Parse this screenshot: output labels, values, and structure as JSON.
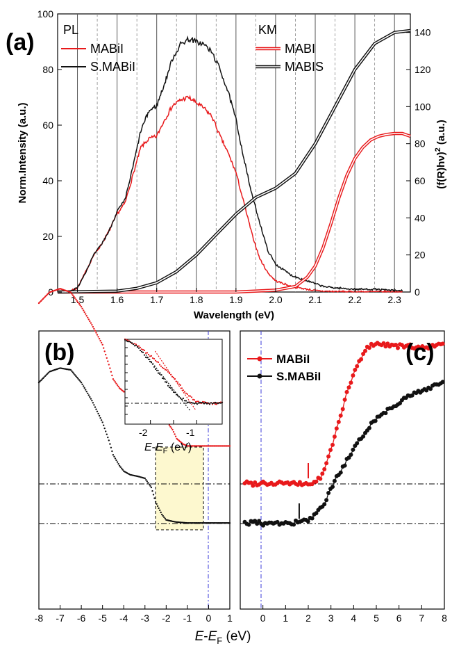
{
  "chart_data": [
    {
      "panel": "(a)",
      "type": "line",
      "xlabel": "Wavelength (eV)",
      "ylabel_left": "Norm.Intensity (a.u.)",
      "ylabel_right": "(f(R)hν)² (a.u.)",
      "xlim": [
        1.45,
        2.34
      ],
      "ylim_left": [
        0,
        100
      ],
      "ylim_right": [
        0,
        150
      ],
      "x_ticks": [
        "1.5",
        "1.6",
        "1.7",
        "1.8",
        "1.9",
        "2.0",
        "2.1",
        "2.2",
        "2.3"
      ],
      "y_ticks_left": [
        "0",
        "20",
        "40",
        "60",
        "80",
        "100"
      ],
      "y_ticks_right": [
        "0",
        "20",
        "40",
        "60",
        "80",
        "100",
        "120",
        "140"
      ],
      "legend_left_title": "PL",
      "legend_right_title": "KM",
      "series": [
        {
          "name": "MABiI",
          "axis": "left",
          "color": "#e8191b",
          "x": [
            1.45,
            1.48,
            1.5,
            1.52,
            1.54,
            1.56,
            1.58,
            1.6,
            1.62,
            1.64,
            1.66,
            1.68,
            1.7,
            1.72,
            1.74,
            1.76,
            1.78,
            1.8,
            1.82,
            1.84,
            1.86,
            1.88,
            1.9,
            1.92,
            1.94,
            1.96,
            1.98,
            2.0,
            2.02,
            2.04,
            2.06,
            2.08,
            2.1,
            2.12,
            2.15,
            2.2,
            2.25,
            2.3,
            2.32
          ],
          "y": [
            0,
            0.2,
            1.5,
            7,
            13,
            17,
            22,
            28,
            32,
            42,
            52,
            55,
            56,
            62,
            67,
            69,
            70,
            68,
            66,
            63,
            56,
            50,
            43,
            32,
            21,
            12,
            7,
            4,
            3,
            2,
            1.5,
            1,
            0.5,
            0.3,
            0.2,
            0.1,
            0.1,
            0.1,
            0
          ]
        },
        {
          "name": "S.MABiI",
          "axis": "left",
          "color": "#111111",
          "x": [
            1.45,
            1.48,
            1.5,
            1.52,
            1.54,
            1.56,
            1.58,
            1.6,
            1.62,
            1.64,
            1.66,
            1.68,
            1.7,
            1.72,
            1.74,
            1.76,
            1.78,
            1.8,
            1.82,
            1.84,
            1.86,
            1.88,
            1.9,
            1.92,
            1.94,
            1.96,
            1.98,
            2.0,
            2.02,
            2.04,
            2.06,
            2.08,
            2.1,
            2.12,
            2.15,
            2.2,
            2.25,
            2.3,
            2.32
          ],
          "y": [
            0,
            0.2,
            1.5,
            7,
            13,
            17,
            22,
            29,
            33,
            45,
            58,
            65,
            67,
            75,
            84,
            89,
            91,
            90,
            89,
            86,
            80,
            72,
            62,
            48,
            35,
            25,
            15,
            10,
            8,
            6,
            5,
            4,
            3,
            2,
            1.5,
            1,
            1,
            0.5,
            0.5
          ]
        },
        {
          "name": "MABI",
          "axis": "right",
          "color": "#e8191b",
          "style": "double",
          "x": [
            1.45,
            1.9,
            2.0,
            2.05,
            2.08,
            2.1,
            2.12,
            2.14,
            2.16,
            2.18,
            2.2,
            2.22,
            2.24,
            2.26,
            2.28,
            2.3,
            2.32,
            2.34
          ],
          "y": [
            0,
            0,
            1,
            3,
            8,
            14,
            24,
            37,
            51,
            63,
            72,
            78,
            82,
            84,
            85,
            85.5,
            85.5,
            84
          ]
        },
        {
          "name": "MABIS",
          "axis": "right",
          "color": "#111111",
          "style": "double",
          "x": [
            1.45,
            1.6,
            1.65,
            1.7,
            1.75,
            1.8,
            1.85,
            1.9,
            1.95,
            2.0,
            2.05,
            2.1,
            2.15,
            2.2,
            2.25,
            2.3,
            2.34
          ],
          "y": [
            0,
            0.5,
            2,
            5,
            11,
            20,
            31,
            42,
            51,
            56,
            64,
            80,
            100,
            120,
            134,
            140,
            141
          ]
        }
      ]
    },
    {
      "panel": "(b)",
      "type": "line",
      "xlabel": "E-E_F (eV)",
      "xlim": [
        -8,
        1
      ],
      "x_ticks": [
        "-8",
        "-7",
        "-6",
        "-5",
        "-4",
        "-3",
        "-2",
        "-1",
        "0",
        "1"
      ],
      "series": [
        {
          "name": "MABiI",
          "color": "#e8191b",
          "x": [
            -8,
            -7.5,
            -7,
            -6.5,
            -6,
            -5.5,
            -5,
            -4.7,
            -4.5,
            -4.2,
            -4,
            -3.7,
            -3.3,
            -3,
            -2.7,
            -2.5,
            -2.2,
            -2,
            -1.7,
            -1.5,
            -1.2,
            -1,
            -0.5,
            0,
            0.5,
            1
          ],
          "y": [
            100,
            106,
            108,
            106,
            98,
            88,
            77,
            66,
            58,
            53,
            51,
            51,
            52,
            51,
            46,
            42,
            38,
            35,
            30,
            25,
            22,
            21,
            21,
            21,
            21,
            21
          ]
        },
        {
          "name": "S.MABiI",
          "color": "#111111",
          "x": [
            -8,
            -7.5,
            -7,
            -6.5,
            -6,
            -5.5,
            -5,
            -4.7,
            -4.5,
            -4.2,
            -4,
            -3.7,
            -3.3,
            -3,
            -2.7,
            -2.5,
            -2.2,
            -2,
            -1.7,
            -1.5,
            -1.2,
            -1,
            0,
            1
          ],
          "y": [
            78,
            84,
            86,
            85,
            78,
            68,
            56,
            46,
            38,
            32,
            29,
            27,
            26,
            25,
            20,
            12,
            5,
            2,
            1.2,
            0.8,
            0.5,
            0.3,
            0.3,
            0.3
          ]
        }
      ],
      "inset": {
        "xlabel": "E-E_F (eV)",
        "x_ticks": [
          "-2",
          "-1"
        ],
        "xlim": [
          -2.55,
          -0.45
        ]
      }
    },
    {
      "panel": "(c)",
      "type": "line",
      "xlim": [
        -1,
        8
      ],
      "x_ticks": [
        "0",
        "1",
        "2",
        "3",
        "4",
        "5",
        "6",
        "7",
        "8"
      ],
      "series": [
        {
          "name": "MABiI",
          "color": "#e8191b",
          "marker": "circle",
          "x": [
            -0.8,
            -0.4,
            0,
            0.4,
            0.8,
            1.2,
            1.6,
            2.0,
            2.3,
            2.6,
            2.8,
            3.0,
            3.2,
            3.4,
            3.6,
            3.8,
            4.0,
            4.2,
            4.4,
            4.6,
            4.8,
            5.0,
            5.3,
            5.6,
            6.0,
            6.5,
            7.0,
            7.5,
            8.0
          ],
          "y": [
            47,
            46,
            47,
            46,
            47,
            46,
            46,
            46,
            47,
            51,
            59,
            68,
            78,
            89,
            99,
            108,
            116,
            123,
            128,
            133,
            135,
            136,
            135,
            135,
            134,
            134,
            133,
            134,
            135
          ]
        },
        {
          "name": "S.MABiI",
          "color": "#111111",
          "marker": "circle",
          "x": [
            -0.8,
            -0.4,
            0,
            0.4,
            0.8,
            1.2,
            1.6,
            2.0,
            2.3,
            2.6,
            2.8,
            3.0,
            3.3,
            3.6,
            4.0,
            4.4,
            4.8,
            5.2,
            5.6,
            6.0,
            6.5,
            7.0,
            7.5,
            8.0
          ],
          "y": [
            20,
            21,
            20,
            21,
            20,
            20,
            21,
            22,
            25,
            30,
            35,
            42,
            50,
            57,
            66,
            75,
            83,
            88,
            92,
            96,
            100,
            103,
            106,
            109
          ]
        }
      ],
      "markers": {
        "MABiI": 2.0,
        "S.MABiI": 1.6
      }
    }
  ],
  "labels": {
    "a": "(a)",
    "b": "(b)",
    "c": "(c)",
    "pl": "PL",
    "km": "KM",
    "mabii": "MABiI",
    "smabii": "S.MABiI",
    "mabi": "MABI",
    "mabis": "MABIS",
    "wavelength": "Wavelength (eV)",
    "norm": "Norm.Intensity (a.u.)",
    "efermi_E": "E",
    "efermi_dash": "-",
    "efermi_sub": "F",
    "efermi_unit": " (eV)"
  },
  "colors": {
    "red": "#e8191b",
    "black": "#111111",
    "zone": "#fdf8cf",
    "blue": "#3a3ad8"
  }
}
